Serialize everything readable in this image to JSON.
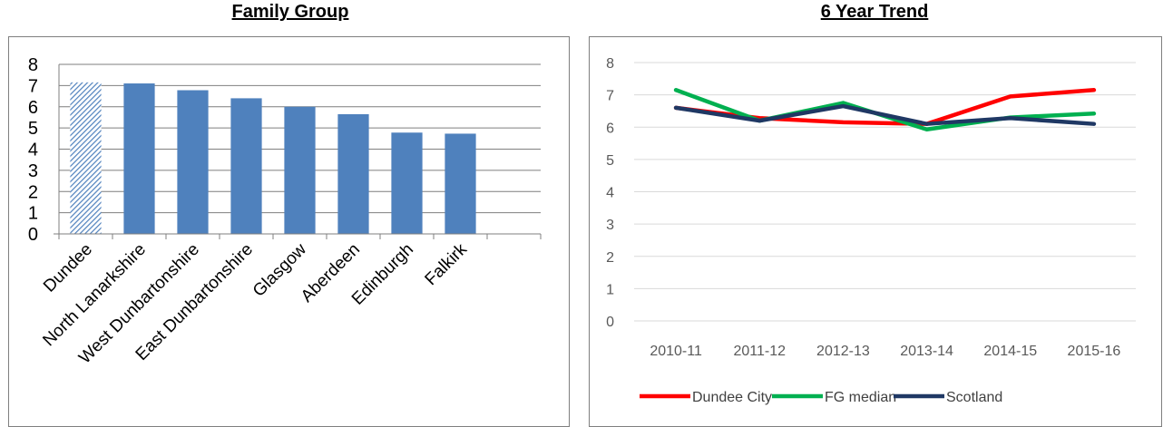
{
  "charts": {
    "left_title": "Family Group",
    "right_title": "6 Year Trend"
  },
  "chart_data": [
    {
      "type": "bar",
      "title": "Family Group",
      "categories": [
        "Dundee",
        "North Lanarkshire",
        "West Dunbartonshire",
        "East Dunbartonshire",
        "Glasgow",
        "Aberdeen",
        "Edinburgh",
        "Falkirk"
      ],
      "values": [
        7.15,
        7.1,
        6.78,
        6.4,
        6.0,
        5.65,
        4.78,
        4.73
      ],
      "highlighted_category": "Dundee",
      "bar_color": "#4f81bd",
      "ylim": [
        0,
        8
      ],
      "yticks": [
        0,
        1,
        2,
        3,
        4,
        5,
        6,
        7,
        8
      ],
      "grid": true
    },
    {
      "type": "line",
      "title": "6 Year Trend",
      "x": [
        "2010-11",
        "2011-12",
        "2012-13",
        "2013-14",
        "2014-15",
        "2015-16"
      ],
      "series": [
        {
          "name": "Dundee City",
          "color": "#ff0000",
          "values": [
            6.6,
            6.28,
            6.15,
            6.1,
            6.95,
            7.15
          ]
        },
        {
          "name": "FG median",
          "color": "#00b050",
          "values": [
            7.15,
            6.2,
            6.75,
            5.93,
            6.3,
            6.42
          ]
        },
        {
          "name": "Scotland",
          "color": "#1f3864",
          "values": [
            6.6,
            6.2,
            6.65,
            6.1,
            6.28,
            6.1
          ]
        }
      ],
      "ylim": [
        0,
        8
      ],
      "yticks": [
        0,
        1,
        2,
        3,
        4,
        5,
        6,
        7,
        8
      ],
      "grid": true,
      "legend": "bottom"
    }
  ]
}
